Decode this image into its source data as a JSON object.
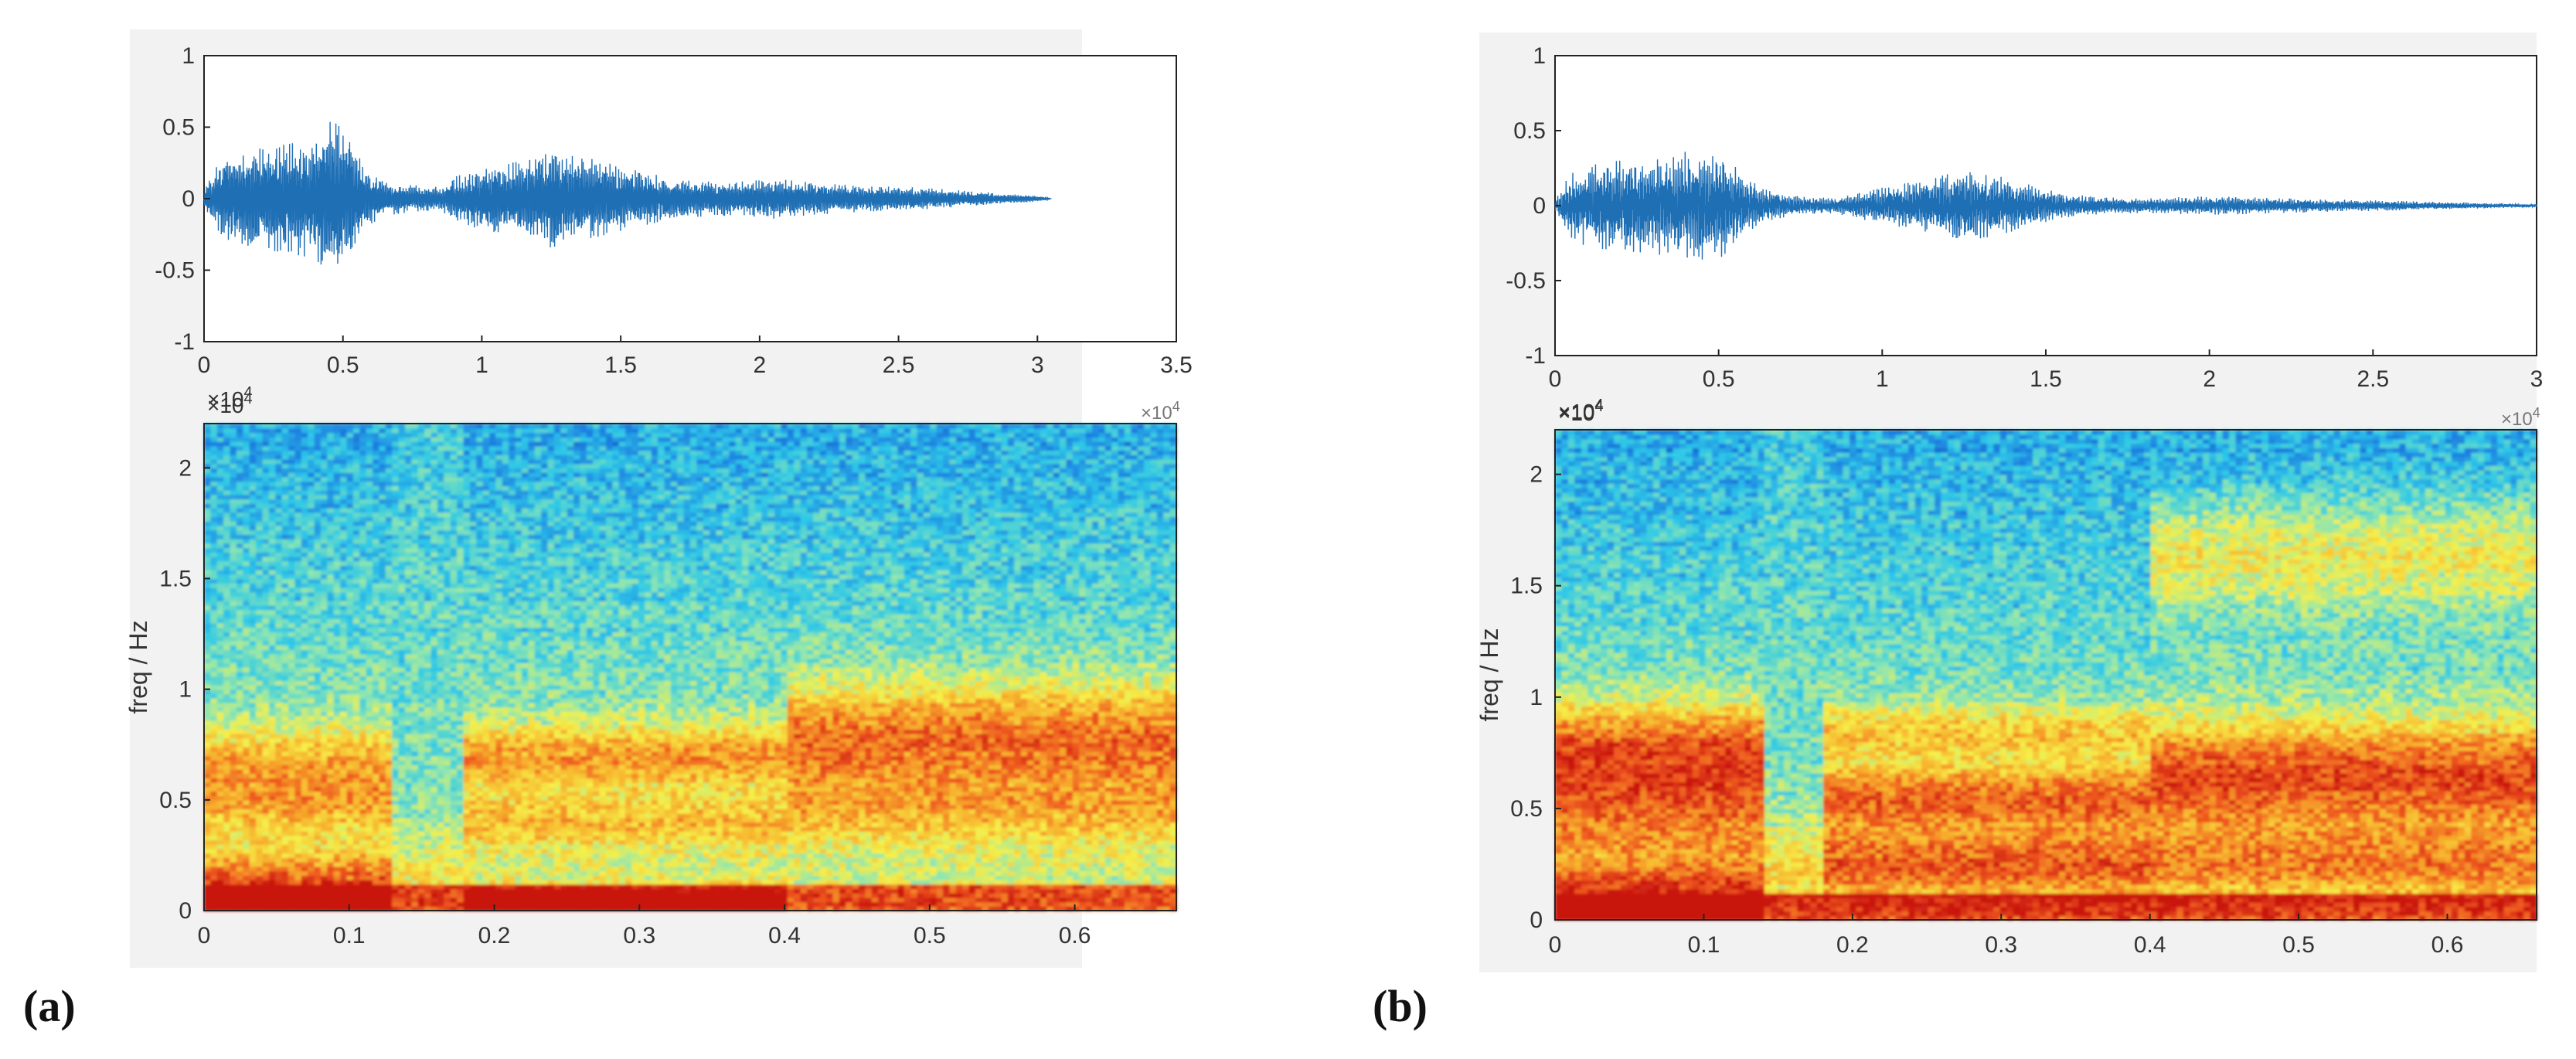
{
  "panels": [
    {
      "label": "(a)"
    },
    {
      "label": "(b)"
    }
  ],
  "colors": {
    "waveform": "#1f6fb5",
    "frame_bg": "#f2f2f2",
    "axis": "#222222",
    "tick_text": "#333333",
    "colormap": [
      "#0b3fb0",
      "#1e7fe0",
      "#2ec8e8",
      "#8fe6b0",
      "#f5f04a",
      "#f7b42e",
      "#ef5a20",
      "#c9150f"
    ]
  },
  "chart_data": [
    {
      "panel": "(a)",
      "type": "line",
      "content": "speech waveform",
      "xlim": [
        0,
        35000
      ],
      "ylim": [
        -1,
        1
      ],
      "x_ticks": [
        0,
        5000,
        10000,
        15000,
        20000,
        25000,
        30000,
        35000
      ],
      "x_tick_labels": [
        "0",
        "0.5",
        "1",
        "1.5",
        "2",
        "2.5",
        "3",
        "3.5"
      ],
      "y_ticks": [
        1,
        0.5,
        0,
        -0.5,
        -1
      ],
      "y_tick_labels": [
        "1",
        "0.5",
        "0",
        "-0.5",
        "-1"
      ],
      "x_exponent": "×10",
      "x_exponent_power": "4",
      "series": [
        {
          "signal_end": 30500,
          "envelope": [
            [
              0,
              0.05
            ],
            [
              500,
              0.25
            ],
            [
              1000,
              0.3
            ],
            [
              2000,
              0.35
            ],
            [
              3000,
              0.38
            ],
            [
              4000,
              0.42
            ],
            [
              4600,
              0.55
            ],
            [
              5200,
              0.45
            ],
            [
              5800,
              0.2
            ],
            [
              6500,
              0.12
            ],
            [
              7200,
              0.1
            ],
            [
              8500,
              0.08
            ],
            [
              9000,
              0.15
            ],
            [
              10000,
              0.22
            ],
            [
              11000,
              0.25
            ],
            [
              12000,
              0.3
            ],
            [
              12700,
              0.36
            ],
            [
              13500,
              0.3
            ],
            [
              14500,
              0.25
            ],
            [
              15500,
              0.2
            ],
            [
              16500,
              0.16
            ],
            [
              17500,
              0.13
            ],
            [
              18500,
              0.12
            ],
            [
              19500,
              0.12
            ],
            [
              20500,
              0.14
            ],
            [
              21500,
              0.12
            ],
            [
              23000,
              0.1
            ],
            [
              24000,
              0.09
            ],
            [
              25500,
              0.08
            ],
            [
              27000,
              0.06
            ],
            [
              28500,
              0.04
            ],
            [
              30000,
              0.02
            ],
            [
              30500,
              0
            ]
          ]
        }
      ]
    },
    {
      "panel": "(a)",
      "type": "heatmap",
      "content": "spectrogram",
      "ylabel": "freq / Hz",
      "xlim": [
        0,
        0.67
      ],
      "ylim": [
        0,
        22000
      ],
      "x_ticks": [
        0,
        0.1,
        0.2,
        0.3,
        0.4,
        0.5,
        0.6
      ],
      "x_tick_labels": [
        "0",
        "0.1",
        "0.2",
        "0.3",
        "0.4",
        "0.5",
        "0.6"
      ],
      "y_ticks": [
        0,
        5000,
        10000,
        15000,
        20000
      ],
      "y_tick_labels": [
        "0",
        "0.5",
        "1",
        "1.5",
        "2"
      ],
      "y_exponent": "×10",
      "y_exponent_power": "4",
      "x_exponent_top": "×10",
      "x_exponent_top_power": "4",
      "segments": [
        {
          "x": [
            0,
            0.13
          ],
          "voiced": true,
          "formants": [
            [
              600,
              1800,
              1.0
            ],
            [
              5000,
              1500,
              0.55
            ],
            [
              7000,
              1500,
              0.5
            ]
          ]
        },
        {
          "x": [
            0.13,
            0.18
          ],
          "voiced": false,
          "formants": [
            [
              1500,
              2000,
              0.35
            ]
          ]
        },
        {
          "x": [
            0.18,
            0.4
          ],
          "voiced": true,
          "formants": [
            [
              300,
              800,
              0.75
            ],
            [
              7000,
              1500,
              0.7
            ],
            [
              4000,
              1200,
              0.45
            ]
          ]
        },
        {
          "x": [
            0.4,
            0.67
          ],
          "voiced": true,
          "formants": [
            [
              7800,
              2500,
              0.9
            ],
            [
              4500,
              1500,
              0.4
            ]
          ]
        }
      ]
    },
    {
      "panel": "(b)",
      "type": "line",
      "content": "speech waveform",
      "xlim": [
        0,
        30000
      ],
      "ylim": [
        -1,
        1
      ],
      "x_ticks": [
        0,
        5000,
        10000,
        15000,
        20000,
        25000,
        30000
      ],
      "x_tick_labels": [
        "0",
        "0.5",
        "1",
        "1.5",
        "2",
        "2.5",
        "3"
      ],
      "y_ticks": [
        1,
        0.5,
        0,
        -0.5,
        -1
      ],
      "y_tick_labels": [
        "1",
        "0.5",
        "0",
        "-0.5",
        "-1"
      ],
      "x_exponent": "×10",
      "x_exponent_power": "4",
      "series": [
        {
          "signal_end": 30000,
          "envelope": [
            [
              0,
              0.03
            ],
            [
              400,
              0.2
            ],
            [
              1000,
              0.28
            ],
            [
              2000,
              0.3
            ],
            [
              3000,
              0.32
            ],
            [
              4000,
              0.36
            ],
            [
              5000,
              0.36
            ],
            [
              5800,
              0.2
            ],
            [
              6500,
              0.1
            ],
            [
              7500,
              0.06
            ],
            [
              8500,
              0.05
            ],
            [
              9500,
              0.1
            ],
            [
              10500,
              0.14
            ],
            [
              11500,
              0.18
            ],
            [
              12500,
              0.24
            ],
            [
              13500,
              0.2
            ],
            [
              14500,
              0.14
            ],
            [
              15500,
              0.08
            ],
            [
              16500,
              0.06
            ],
            [
              17500,
              0.05
            ],
            [
              18500,
              0.05
            ],
            [
              19500,
              0.06
            ],
            [
              20500,
              0.06
            ],
            [
              22000,
              0.05
            ],
            [
              24000,
              0.04
            ],
            [
              26000,
              0.03
            ],
            [
              28000,
              0.02
            ],
            [
              30000,
              0.01
            ]
          ]
        }
      ]
    },
    {
      "panel": "(b)",
      "type": "heatmap",
      "content": "spectrogram",
      "ylabel": "freq / Hz",
      "xlim": [
        0,
        0.66
      ],
      "ylim": [
        0,
        22000
      ],
      "x_ticks": [
        0,
        0.1,
        0.2,
        0.3,
        0.4,
        0.5,
        0.6
      ],
      "x_tick_labels": [
        "0",
        "0.1",
        "0.2",
        "0.3",
        "0.4",
        "0.5",
        "0.6"
      ],
      "y_ticks": [
        0,
        5000,
        10000,
        15000,
        20000
      ],
      "y_tick_labels": [
        "0",
        "0.5",
        "1",
        "1.5",
        "2"
      ],
      "y_exponent": "×10",
      "y_exponent_power": "4",
      "x_exponent_top": "×10",
      "x_exponent_top_power": "4",
      "segments": [
        {
          "x": [
            0,
            0.14
          ],
          "voiced": true,
          "formants": [
            [
              600,
              1800,
              1.0
            ],
            [
              5500,
              3000,
              0.8
            ],
            [
              8000,
              2000,
              0.6
            ]
          ]
        },
        {
          "x": [
            0.14,
            0.18
          ],
          "voiced": false,
          "formants": [
            [
              2000,
              2500,
              0.45
            ]
          ]
        },
        {
          "x": [
            0.18,
            0.4
          ],
          "voiced": true,
          "formants": [
            [
              2500,
              1500,
              0.8
            ],
            [
              5500,
              1500,
              0.85
            ],
            [
              8500,
              1200,
              0.55
            ]
          ]
        },
        {
          "x": [
            0.4,
            0.66
          ],
          "voiced": true,
          "formants": [
            [
              6500,
              2500,
              1.0
            ],
            [
              2500,
              1500,
              0.6
            ],
            [
              16500,
              2500,
              0.6
            ]
          ]
        }
      ]
    }
  ]
}
